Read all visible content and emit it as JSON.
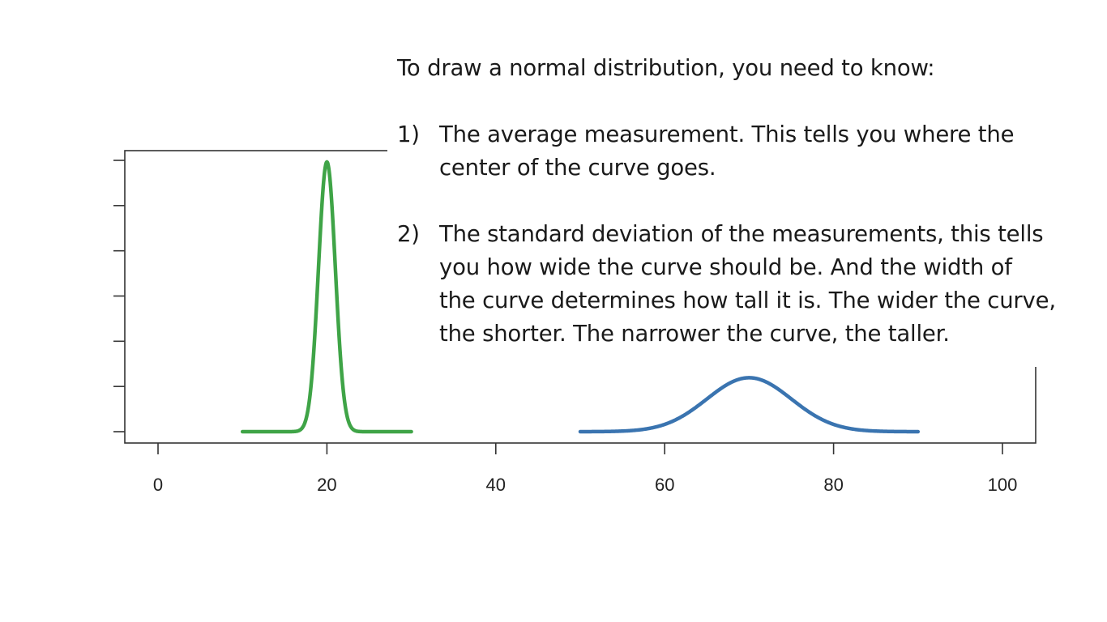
{
  "slide": {
    "heading": "To draw a normal distribution, you need to know:",
    "points": [
      {
        "number": "1)",
        "lines": [
          "The average measurement. This tells you where the",
          "center of the curve goes."
        ]
      },
      {
        "number": "2)",
        "lines": [
          "The standard deviation of the measurements, this tells",
          "you how wide the curve should be. And the width of",
          "the curve determines how tall it is. The wider the curve,",
          "the shorter. The narrower the curve, the taller."
        ]
      }
    ]
  },
  "chart_data": {
    "type": "line",
    "title": "",
    "xlabel": "",
    "ylabel": "",
    "xlim": [
      -4,
      104
    ],
    "x_ticks": [
      0,
      20,
      40,
      60,
      80,
      100
    ],
    "y_tick_count": 7,
    "y_tick_labels_shown": false,
    "grid": false,
    "series": [
      {
        "mean": 20,
        "sd": 1,
        "x_range": [
          10,
          30
        ],
        "color": "#3fa447"
      },
      {
        "mean": 70,
        "sd": 5,
        "x_range": [
          50,
          90
        ],
        "color": "#3a74b0"
      }
    ]
  }
}
